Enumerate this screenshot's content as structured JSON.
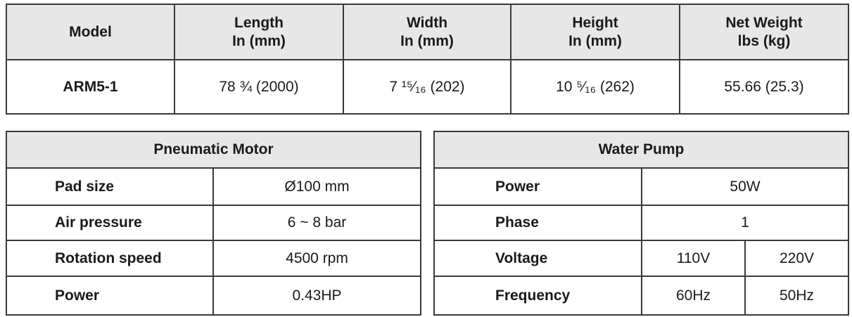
{
  "spec_table": {
    "headers": [
      [
        "Model"
      ],
      [
        "Length",
        "In (mm)"
      ],
      [
        "Width",
        "In (mm)"
      ],
      [
        "Height",
        "In (mm)"
      ],
      [
        "Net Weight",
        "lbs (kg)"
      ]
    ],
    "row": [
      "ARM5-1",
      "78 ¾ (2000)",
      "7 ¹⁵⁄₁₆ (202)",
      "10 ⁵⁄₁₆ (262)",
      "55.66 (25.3)"
    ]
  },
  "pneumatic_motor": {
    "title": "Pneumatic Motor",
    "rows": [
      [
        "Pad size",
        "Ø100 mm"
      ],
      [
        "Air pressure",
        "6 ~ 8 bar"
      ],
      [
        "Rotation speed",
        "4500 rpm"
      ],
      [
        "Power",
        "0.43HP"
      ]
    ]
  },
  "water_pump": {
    "title": "Water Pump",
    "rows": [
      [
        "Power",
        "50W"
      ],
      [
        "Phase",
        "1"
      ],
      [
        "Voltage",
        "110V",
        "220V"
      ],
      [
        "Frequency",
        "60Hz",
        "50Hz"
      ]
    ]
  }
}
